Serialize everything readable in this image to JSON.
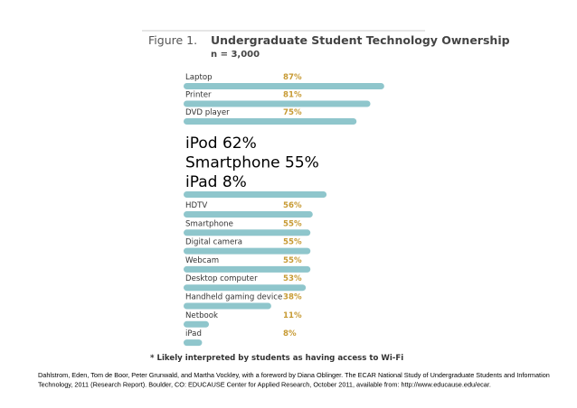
{
  "figure": {
    "title_lead": "Figure 1.",
    "title_main": "Undergraduate Student Technology Ownership",
    "subtitle": "n = 3,000",
    "footnote": "* Likely interpreted by students as having access to Wi-Fi"
  },
  "overlay_lines": [
    "iPod 62%",
    "Smartphone 55%",
    "iPad 8%"
  ],
  "citation_lines": [
    "Dahlstrom, Eden, Tom de Boor, Peter Grunwald, and Martha Vockley, with a foreword by Diana Oblinger. The ECAR National Study of Undergraduate Students and Information",
    "Technology, 2011 (Research Report). Boulder, CO: EDUCAUSE Center for Applied Research, October 2011, available from: http://www.educause.edu/ecar."
  ],
  "colors": {
    "bar": "#8fc6cc",
    "value_label": "#c79a33",
    "title_rule": "#bbbbbb"
  },
  "chart_data": {
    "type": "bar",
    "orientation": "horizontal",
    "unit": "%",
    "xlim": [
      0,
      100
    ],
    "top_group": {
      "categories": [
        "Laptop",
        "Printer",
        "DVD player"
      ],
      "values": [
        87,
        81,
        75
      ],
      "labels": [
        "87%",
        "81%",
        "75%"
      ]
    },
    "hidden_group_bar_values": [
      62
    ],
    "bottom_group": {
      "categories": [
        "HDTV",
        "Smartphone",
        "Digital camera",
        "Webcam",
        "Desktop computer",
        "Handheld gaming device",
        "Netbook",
        "iPad"
      ],
      "values": [
        56,
        55,
        55,
        55,
        53,
        38,
        11,
        8
      ],
      "labels": [
        "56%",
        "55%",
        "55%",
        "55%",
        "53%",
        "38%",
        "11%",
        "8%"
      ]
    }
  }
}
